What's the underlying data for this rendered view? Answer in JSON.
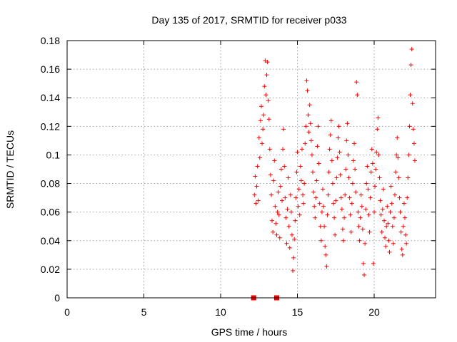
{
  "chart_data": {
    "type": "scatter",
    "title": "Day 135 of 2017, SRMTID for receiver p033",
    "xlabel": "GPS time / hours",
    "ylabel": "SRMTID / TECUs",
    "xlim": [
      0,
      24
    ],
    "ylim": [
      0,
      0.18
    ],
    "x_ticks": [
      0,
      5,
      10,
      15,
      20
    ],
    "x_tick_labels": [
      "0",
      "5",
      "10",
      "15",
      "20"
    ],
    "y_ticks": [
      0,
      0.02,
      0.04,
      0.06,
      0.08,
      0.1,
      0.12,
      0.14,
      0.16,
      0.18
    ],
    "y_tick_labels": [
      "0",
      "0.02",
      "0.04",
      "0.06",
      "0.08",
      "0.1",
      "0.12",
      "0.14",
      "0.16",
      "0.18"
    ],
    "grid": true,
    "marker": "plus",
    "color": "#ff0000",
    "series": [
      {
        "name": "SRMTID",
        "points": [
          [
            12.2,
            0.072
          ],
          [
            12.25,
            0.085
          ],
          [
            12.3,
            0.066
          ],
          [
            12.35,
            0.078
          ],
          [
            12.4,
            0.092
          ],
          [
            12.45,
            0.068
          ],
          [
            12.5,
            0.112
          ],
          [
            12.55,
            0.098
          ],
          [
            12.6,
            0.124
          ],
          [
            12.65,
            0.134
          ],
          [
            12.7,
            0.108
          ],
          [
            12.75,
            0.118
          ],
          [
            12.8,
            0.128
          ],
          [
            12.85,
            0.148
          ],
          [
            12.9,
            0.166
          ],
          [
            12.95,
            0.142
          ],
          [
            13.0,
            0.156
          ],
          [
            13.05,
            0.165
          ],
          [
            13.1,
            0.138
          ],
          [
            13.15,
            0.125
          ],
          [
            13.2,
            0.104
          ],
          [
            13.25,
            0.086
          ],
          [
            13.3,
            0.072
          ],
          [
            13.35,
            0.054
          ],
          [
            13.4,
            0.046
          ],
          [
            13.45,
            0.082
          ],
          [
            13.5,
            0.096
          ],
          [
            13.55,
            0.064
          ],
          [
            13.6,
            0.052
          ],
          [
            13.65,
            0.044
          ],
          [
            13.7,
            0.06
          ],
          [
            13.75,
            0.074
          ],
          [
            13.8,
            0.058
          ],
          [
            13.85,
            0.042
          ],
          [
            13.9,
            0.078
          ],
          [
            13.95,
            0.09
          ],
          [
            14.0,
            0.068
          ],
          [
            14.05,
            0.104
          ],
          [
            14.1,
            0.118
          ],
          [
            14.15,
            0.092
          ],
          [
            14.2,
            0.07
          ],
          [
            14.25,
            0.056
          ],
          [
            14.3,
            0.038
          ],
          [
            14.35,
            0.062
          ],
          [
            14.4,
            0.084
          ],
          [
            14.45,
            0.05
          ],
          [
            14.5,
            0.035
          ],
          [
            14.55,
            0.072
          ],
          [
            14.6,
            0.06
          ],
          [
            14.65,
            0.044
          ],
          [
            14.7,
            0.019
          ],
          [
            14.75,
            0.028
          ],
          [
            14.8,
            0.041
          ],
          [
            14.85,
            0.054
          ],
          [
            14.9,
            0.07
          ],
          [
            14.95,
            0.088
          ],
          [
            15.0,
            0.102
          ],
          [
            15.05,
            0.064
          ],
          [
            15.1,
            0.076
          ],
          [
            15.15,
            0.058
          ],
          [
            15.2,
            0.092
          ],
          [
            15.25,
            0.082
          ],
          [
            15.3,
            0.104
          ],
          [
            15.35,
            0.072
          ],
          [
            15.4,
            0.066
          ],
          [
            15.45,
            0.08
          ],
          [
            15.5,
            0.108
          ],
          [
            15.55,
            0.12
          ],
          [
            15.6,
            0.152
          ],
          [
            15.65,
            0.145
          ],
          [
            15.7,
            0.128
          ],
          [
            15.75,
            0.116
          ],
          [
            15.8,
            0.135
          ],
          [
            15.85,
            0.122
          ],
          [
            15.9,
            0.11
          ],
          [
            15.95,
            0.1
          ],
          [
            16.0,
            0.088
          ],
          [
            16.05,
            0.074
          ],
          [
            16.1,
            0.064
          ],
          [
            16.15,
            0.056
          ],
          [
            16.2,
            0.07
          ],
          [
            16.25,
            0.082
          ],
          [
            16.3,
            0.106
          ],
          [
            16.35,
            0.12
          ],
          [
            16.4,
            0.094
          ],
          [
            16.45,
            0.066
          ],
          [
            16.5,
            0.05
          ],
          [
            16.55,
            0.04
          ],
          [
            16.6,
            0.06
          ],
          [
            16.65,
            0.076
          ],
          [
            16.7,
            0.064
          ],
          [
            16.75,
            0.05
          ],
          [
            16.8,
            0.036
          ],
          [
            16.85,
            0.03
          ],
          [
            16.9,
            0.022
          ],
          [
            16.95,
            0.058
          ],
          [
            17.0,
            0.072
          ],
          [
            17.05,
            0.088
          ],
          [
            17.1,
            0.104
          ],
          [
            17.15,
            0.114
          ],
          [
            17.2,
            0.124
          ],
          [
            17.25,
            0.096
          ],
          [
            17.3,
            0.08
          ],
          [
            17.35,
            0.066
          ],
          [
            17.4,
            0.056
          ],
          [
            17.45,
            0.044
          ],
          [
            17.5,
            0.068
          ],
          [
            17.55,
            0.084
          ],
          [
            17.6,
            0.098
          ],
          [
            17.65,
            0.112
          ],
          [
            17.7,
            0.12
          ],
          [
            17.75,
            0.102
          ],
          [
            17.8,
            0.086
          ],
          [
            17.85,
            0.07
          ],
          [
            17.9,
            0.062
          ],
          [
            17.95,
            0.048
          ],
          [
            18.0,
            0.04
          ],
          [
            18.05,
            0.056
          ],
          [
            18.1,
            0.072
          ],
          [
            18.15,
            0.09
          ],
          [
            18.2,
            0.11
          ],
          [
            18.25,
            0.122
          ],
          [
            18.3,
            0.1
          ],
          [
            18.35,
            0.084
          ],
          [
            18.4,
            0.07
          ],
          [
            18.45,
            0.058
          ],
          [
            18.5,
            0.046
          ],
          [
            18.55,
            0.066
          ],
          [
            18.6,
            0.08
          ],
          [
            18.65,
            0.096
          ],
          [
            18.7,
            0.108
          ],
          [
            18.75,
            0.09
          ],
          [
            18.8,
            0.074
          ],
          [
            18.85,
            0.151
          ],
          [
            18.9,
            0.142
          ],
          [
            18.95,
            0.06
          ],
          [
            19.0,
            0.05
          ],
          [
            19.05,
            0.04
          ],
          [
            19.1,
            0.056
          ],
          [
            19.15,
            0.072
          ],
          [
            19.2,
            0.064
          ],
          [
            19.25,
            0.048
          ],
          [
            19.3,
            0.024
          ],
          [
            19.35,
            0.016
          ],
          [
            19.4,
            0.038
          ],
          [
            19.45,
            0.062
          ],
          [
            19.5,
            0.08
          ],
          [
            19.55,
            0.092
          ],
          [
            19.6,
            0.076
          ],
          [
            19.65,
            0.058
          ],
          [
            19.7,
            0.046
          ],
          [
            19.75,
            0.07
          ],
          [
            19.8,
            0.088
          ],
          [
            19.85,
            0.104
          ],
          [
            19.9,
            0.094
          ],
          [
            19.95,
            0.024
          ],
          [
            20.0,
            0.06
          ],
          [
            20.05,
            0.078
          ],
          [
            20.1,
            0.09
          ],
          [
            20.15,
            0.102
          ],
          [
            20.2,
            0.118
          ],
          [
            20.25,
            0.126
          ],
          [
            20.3,
            0.1
          ],
          [
            20.35,
            0.084
          ],
          [
            20.4,
            0.068
          ],
          [
            20.45,
            0.058
          ],
          [
            20.5,
            0.046
          ],
          [
            20.55,
            0.062
          ],
          [
            20.6,
            0.076
          ],
          [
            20.65,
            0.054
          ],
          [
            20.7,
            0.042
          ],
          [
            20.75,
            0.036
          ],
          [
            20.8,
            0.05
          ],
          [
            20.85,
            0.064
          ],
          [
            20.9,
            0.052
          ],
          [
            20.95,
            0.04
          ],
          [
            21.0,
            0.032
          ],
          [
            21.05,
            0.06
          ],
          [
            21.1,
            0.078
          ],
          [
            21.15,
            0.066
          ],
          [
            21.2,
            0.05
          ],
          [
            21.25,
            0.038
          ],
          [
            21.3,
            0.056
          ],
          [
            21.35,
            0.072
          ],
          [
            21.4,
            0.088
          ],
          [
            21.45,
            0.1
          ],
          [
            21.5,
            0.112
          ],
          [
            21.55,
            0.098
          ],
          [
            21.6,
            0.084
          ],
          [
            21.65,
            0.07
          ],
          [
            21.7,
            0.06
          ],
          [
            21.75,
            0.046
          ],
          [
            21.8,
            0.034
          ],
          [
            21.85,
            0.03
          ],
          [
            21.9,
            0.05
          ],
          [
            21.95,
            0.066
          ],
          [
            22.0,
            0.056
          ],
          [
            22.05,
            0.044
          ],
          [
            22.1,
            0.038
          ],
          [
            22.15,
            0.07
          ],
          [
            22.2,
            0.084
          ],
          [
            22.25,
            0.1
          ],
          [
            22.3,
            0.12
          ],
          [
            22.35,
            0.142
          ],
          [
            22.4,
            0.163
          ],
          [
            22.45,
            0.174
          ],
          [
            22.5,
            0.136
          ],
          [
            22.55,
            0.118
          ],
          [
            22.6,
            0.108
          ],
          [
            22.65,
            0.096
          ]
        ]
      },
      {
        "name": "zero-value markers",
        "points": [
          [
            12.15,
            0.0
          ],
          [
            13.65,
            0.0
          ]
        ]
      }
    ]
  }
}
